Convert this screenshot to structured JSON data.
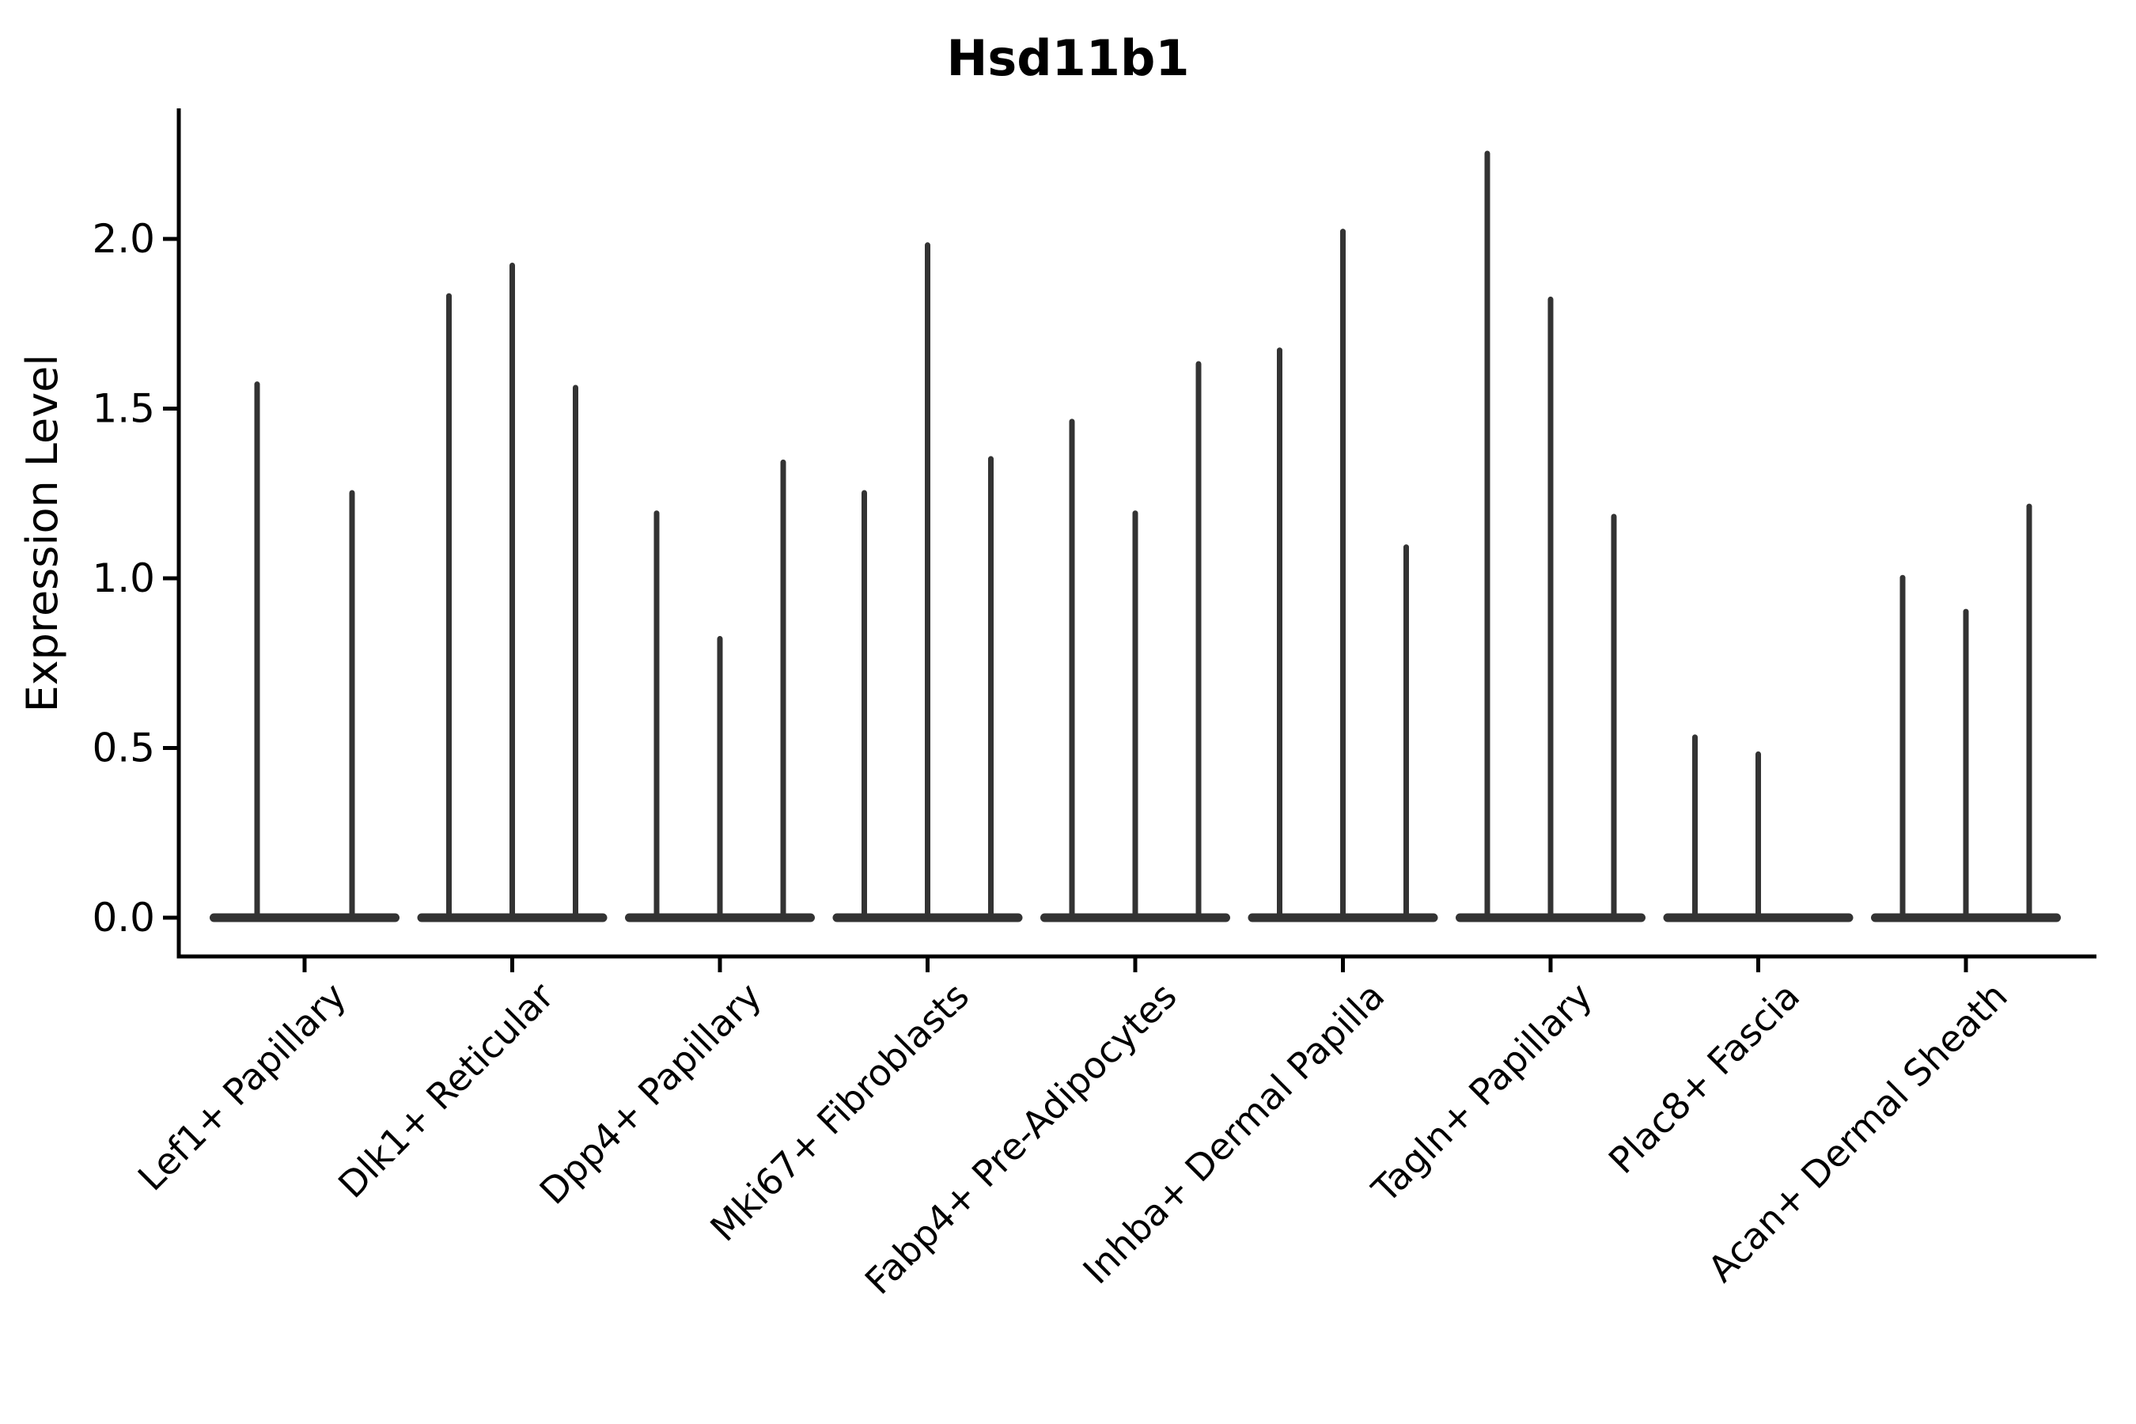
{
  "figure": {
    "background": "#ffffff"
  },
  "chart_data": {
    "type": "violin",
    "title": "Hsd11b1",
    "ylabel": "Expression Level",
    "xlabel": "",
    "grid": false,
    "legend": "none",
    "ytick_labels": [
      "0.0",
      "0.5",
      "1.0",
      "1.5",
      "2.0"
    ],
    "ytick_values": [
      0.0,
      0.5,
      1.0,
      1.5,
      2.0
    ],
    "ylim": [
      -0.114,
      2.385
    ],
    "x_label_rotation_deg": 45,
    "categories": [
      "Lef1+ Papillary",
      "Dlk1+ Reticular",
      "Dpp4+ Papillary",
      "Mki67+ Fibroblasts",
      "Fabp4+ Pre-Adipocytes",
      "Inhba+ Dermal Papilla",
      "Tagln+ Papillary",
      "Plac8+ Fascia",
      "Acan+ Dermal Sheath"
    ],
    "groups": [
      {
        "category": "Lef1+ Papillary",
        "violin_max_values": [
          1.58,
          1.26
        ]
      },
      {
        "category": "Dlk1+ Reticular",
        "violin_max_values": [
          1.84,
          1.93,
          1.57
        ]
      },
      {
        "category": "Dpp4+ Papillary",
        "violin_max_values": [
          1.2,
          0.83,
          1.35
        ]
      },
      {
        "category": "Mki67+ Fibroblasts",
        "violin_max_values": [
          1.26,
          1.99,
          1.36
        ]
      },
      {
        "category": "Fabp4+ Pre-Adipocytes",
        "violin_max_values": [
          1.47,
          1.2,
          1.64
        ]
      },
      {
        "category": "Inhba+ Dermal Papilla",
        "violin_max_values": [
          1.68,
          2.03,
          1.1
        ]
      },
      {
        "category": "Tagln+ Papillary",
        "violin_max_values": [
          2.26,
          1.83,
          1.19
        ]
      },
      {
        "category": "Plac8+ Fascia",
        "violin_max_values": [
          0.54,
          0.49,
          0.0
        ]
      },
      {
        "category": "Acan+ Dermal Sheath",
        "violin_max_values": [
          1.01,
          0.91,
          1.22
        ]
      }
    ],
    "style": {
      "violin_color": "#333333",
      "axis_color": "#000000",
      "text_color": "#000000"
    },
    "notes": "Violin plot; each violin is collapsed flat at expression 0 with a thin density spike rising to its maximum expression value. Groups of 2-3 violins per cell-type category."
  }
}
